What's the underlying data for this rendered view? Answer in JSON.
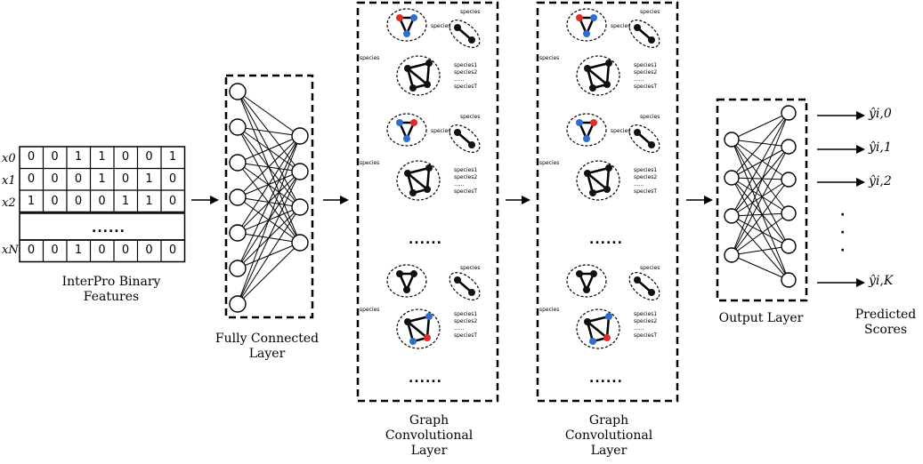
{
  "input": {
    "row_labels": [
      "x0",
      "x1",
      "x2",
      "xN"
    ],
    "rows": [
      [
        "0",
        "0",
        "1",
        "1",
        "0",
        "0",
        "1"
      ],
      [
        "0",
        "0",
        "0",
        "1",
        "0",
        "1",
        "0"
      ],
      [
        "1",
        "0",
        "0",
        "0",
        "1",
        "1",
        "0"
      ],
      [
        "0",
        "0",
        "1",
        "0",
        "0",
        "0",
        "0"
      ]
    ],
    "ellipsis": "......",
    "caption_line1": "InterPro Binary",
    "caption_line2": "Features"
  },
  "fc_layer": {
    "caption_line1": "Fully Connected",
    "caption_line2": "Layer"
  },
  "gcn_layers": [
    {
      "caption_line1": "Graph",
      "caption_line2": "Convolutional",
      "caption_line3": "Layer",
      "ellipsis": "......"
    },
    {
      "caption_line1": "Graph",
      "caption_line2": "Convolutional",
      "caption_line3": "Layer",
      "ellipsis": "......"
    }
  ],
  "species_label": "species",
  "species_list": [
    "species1",
    "species2",
    "......",
    "speciesT"
  ],
  "node_colors": {
    "black": "#111111",
    "red": "#e02b2b",
    "blue": "#2f6fc9"
  },
  "output_layer": {
    "caption": "Output Layer"
  },
  "outputs": {
    "labels": [
      "ŷi,0",
      "ŷi,1",
      "ŷi,2",
      "ŷi,K"
    ],
    "vdots": "·",
    "caption_line1": "Predicted",
    "caption_line2": "Scores"
  }
}
